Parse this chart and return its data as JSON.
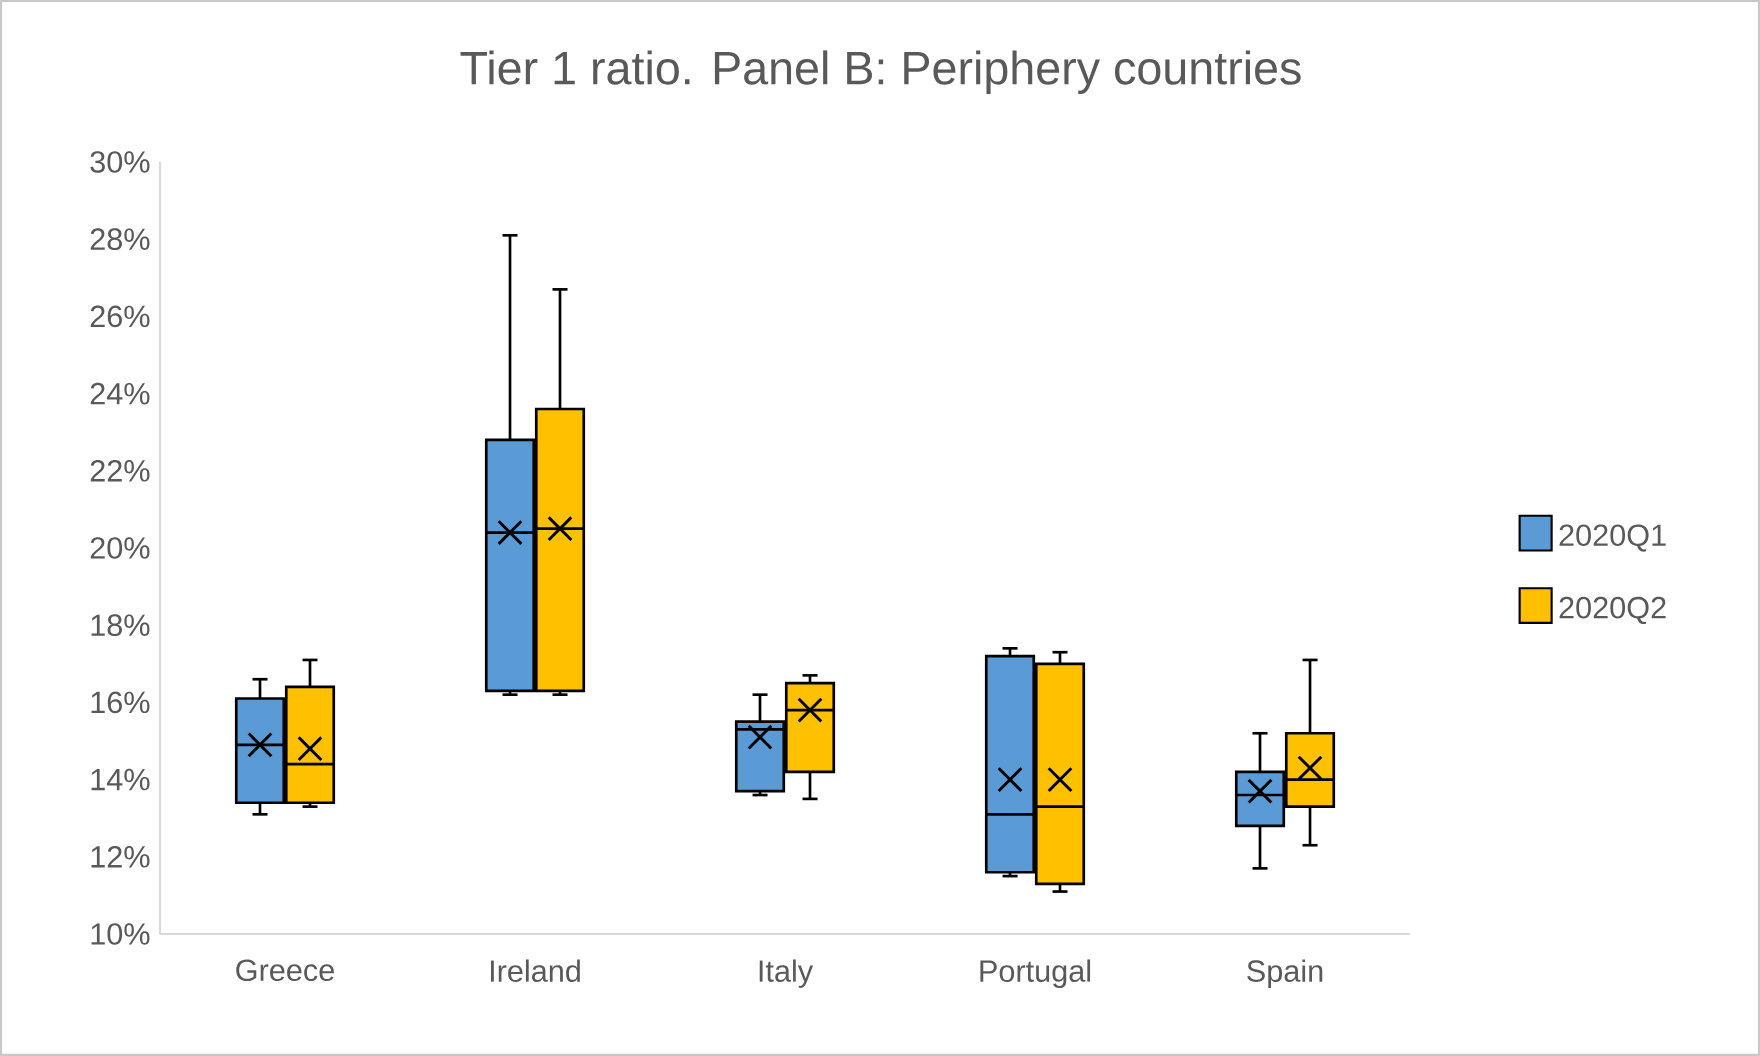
{
  "chart_data": {
    "type": "box",
    "title": "Tier 1 ratio. Panel B: Periphery countries",
    "categories": [
      "Greece",
      "Ireland",
      "Italy",
      "Portugal",
      "Spain"
    ],
    "series": [
      {
        "name": "2020Q1",
        "color": "#5b9bd5",
        "boxes": [
          {
            "low": 13.1,
            "q1": 13.4,
            "median": 14.9,
            "q3": 16.1,
            "high": 16.6,
            "mean": 14.9
          },
          {
            "low": 16.2,
            "q1": 16.3,
            "median": 20.4,
            "q3": 22.8,
            "high": 28.1,
            "mean": 20.4
          },
          {
            "low": 13.6,
            "q1": 13.7,
            "median": 15.3,
            "q3": 15.5,
            "high": 16.2,
            "mean": 15.1
          },
          {
            "low": 11.5,
            "q1": 11.6,
            "median": 13.1,
            "q3": 17.2,
            "high": 17.4,
            "mean": 14.0
          },
          {
            "low": 11.7,
            "q1": 12.8,
            "median": 13.6,
            "q3": 14.2,
            "high": 15.2,
            "mean": 13.7
          }
        ]
      },
      {
        "name": "2020Q2",
        "color": "#ffc000",
        "boxes": [
          {
            "low": 13.3,
            "q1": 13.4,
            "median": 14.4,
            "q3": 16.4,
            "high": 17.1,
            "mean": 14.8
          },
          {
            "low": 16.2,
            "q1": 16.3,
            "median": 20.5,
            "q3": 23.6,
            "high": 26.7,
            "mean": 20.5
          },
          {
            "low": 13.5,
            "q1": 14.2,
            "median": 15.8,
            "q3": 16.5,
            "high": 16.7,
            "mean": 15.8
          },
          {
            "low": 11.1,
            "q1": 11.3,
            "median": 13.3,
            "q3": 17.0,
            "high": 17.3,
            "mean": 14.0
          },
          {
            "low": 12.3,
            "q1": 13.3,
            "median": 14.0,
            "q3": 15.2,
            "high": 17.1,
            "mean": 14.3
          }
        ]
      }
    ],
    "ylim": [
      10,
      30
    ],
    "yticks": [
      {
        "value": 10,
        "label": "10%"
      },
      {
        "value": 12,
        "label": "12%"
      },
      {
        "value": 14,
        "label": "14%"
      },
      {
        "value": 16,
        "label": "16%"
      },
      {
        "value": 18,
        "label": "18%"
      },
      {
        "value": 20,
        "label": "20%"
      },
      {
        "value": 22,
        "label": "22%"
      },
      {
        "value": 24,
        "label": "24%"
      },
      {
        "value": 26,
        "label": "26%"
      },
      {
        "value": 28,
        "label": "28%"
      },
      {
        "value": 30,
        "label": "30%"
      }
    ],
    "grid": false,
    "legend": "right"
  }
}
